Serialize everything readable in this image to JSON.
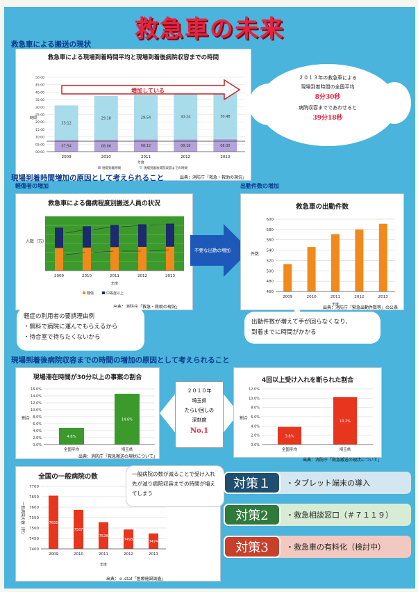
{
  "title": "救急車の未来",
  "sections": {
    "s1": "救急車による搬送の現状",
    "s2": "現場到着時間増加の原因として考えられること",
    "s3": "現場到着後病院収容までの時間の増加の原因として考えられること"
  },
  "chart1": {
    "title": "救急車による現場到着時間平均と現場到着後病院収容までの時間",
    "arrow_label": "増加している",
    "ylabel": "時間",
    "xlabel": "年度",
    "legend": [
      "現場到着時間",
      "現場到着後病院収容までの時間"
    ],
    "source": "出典：消防庁「救急・救助の現況」",
    "yticks": [
      "00:00",
      "05:00",
      "10:00",
      "15:00",
      "20:00",
      "25:00",
      "30:00",
      "35:00",
      "40:00",
      "45:00",
      "50:00"
    ]
  },
  "cloud": {
    "l1": "２０１３年の救急車による",
    "l2": "現場到着時間の全国平均",
    "v1": "8分30秒",
    "l3": "病院収容までであわせると",
    "v2": "39分18秒"
  },
  "sub_left": "軽傷者の増加",
  "sub_right": "出動件数の増加",
  "chart2": {
    "title": "救急車による傷病程度別搬送人員の状況",
    "ylabel": "人数（万）",
    "xlabel": "年度",
    "legend": [
      "軽傷",
      "中等症以上"
    ],
    "source": "出典：消防庁「救急・救助の現況」"
  },
  "arrow_label": "不要な出動の増加",
  "chart3": {
    "title": "救急車の出動件数",
    "ylabel": "件数",
    "xlabel": "年度",
    "source": "出典：消防庁「緊急出動件数等」の公表"
  },
  "callout_left": [
    "軽症の利用者の要請理由例",
    "・無料で病院に運んでもらえるから",
    "・待合室で待ちたくないから"
  ],
  "callout_right": [
    "出動件数が増えて手が回らなくなり、",
    "到着までに時間がかかる"
  ],
  "chart4": {
    "title": "現場滞在時間が30分以上の事案の割合",
    "ylabel": "割合",
    "source": "出典：消防庁「救急搬送の現状について」"
  },
  "center_box": {
    "l1": "２０１０年",
    "l2": "埼玉県",
    "l3": "たらい回しの",
    "l4": "深刻度",
    "v": "No.1"
  },
  "chart5": {
    "title": "4回以上受け入れを断られた割合",
    "ylabel": "割合",
    "source": "出典：消防庁「救急搬送の現状について」"
  },
  "chart6": {
    "title": "全国の一般病院の数",
    "ylabel": "一般病院の数（軒）",
    "xlabel": "年度",
    "source": "出典：ｅ-stat「医療施設調査」"
  },
  "callout_hosp": "一般病院の数が減ることで受け入れ先が減り病院収容までの時間が増えてしまう",
  "measures": [
    {
      "label": "対策１",
      "text": "・タブレット端末の導入",
      "color": "#1f4e6e",
      "bg": "#d4e6f0"
    },
    {
      "label": "対策2",
      "text": "・救急相談窓口（＃７１１９）",
      "color": "#2f7a3a",
      "bg": "#d8ecd5"
    },
    {
      "label": "対策3",
      "text": "・救急車の有料化（検討中）",
      "color": "#c8402a",
      "bg": "#f1c9c0"
    }
  ],
  "chart_data": [
    {
      "type": "bar",
      "title": "救急車による現場到着時間平均と現場到着後病院収容までの時間",
      "categories": [
        "2009",
        "2010",
        "2011",
        "2012",
        "2013"
      ],
      "series": [
        {
          "name": "現場到着時間",
          "labels": [
            "07:54",
            "08:06",
            "08:12",
            "08:18",
            "08:30"
          ],
          "values": [
            7.9,
            8.1,
            8.2,
            8.3,
            8.5
          ]
        },
        {
          "name": "現場到着後病院収容までの時間",
          "labels": [
            "23:12",
            "29:18",
            "29:54",
            "30:24",
            "30:48"
          ],
          "values": [
            23.2,
            29.3,
            29.9,
            30.4,
            30.8
          ]
        }
      ],
      "ylim": [
        0,
        50
      ]
    },
    {
      "type": "bar",
      "title": "救急車による傷病程度別搬送人員の状況",
      "categories": [
        "2009",
        "2010",
        "2011",
        "2012",
        "2013"
      ],
      "series": [
        {
          "name": "軽傷",
          "values": [
            250,
            255,
            260,
            262,
            264
          ]
        },
        {
          "name": "中等症以上",
          "values": [
            225,
            235,
            245,
            250,
            255
          ]
        }
      ],
      "ylim": [
        0,
        600
      ]
    },
    {
      "type": "bar",
      "title": "救急車の出動件数",
      "categories": [
        "2009",
        "2010",
        "2011",
        "2012",
        "2013"
      ],
      "values": [
        513,
        546,
        571,
        580,
        591
      ],
      "ylim": [
        460,
        600
      ],
      "yticks": [
        "460",
        "480",
        "500",
        "520",
        "540",
        "560",
        "580",
        "600"
      ]
    },
    {
      "type": "bar",
      "title": "現場滞在時間が30分以上の事案の割合",
      "categories": [
        "全国平均",
        "埼玉県"
      ],
      "values": [
        4.8,
        14.6
      ],
      "labels": [
        "4.8%",
        "14.6%"
      ],
      "ylim": [
        0,
        16
      ],
      "yticks": [
        "0.0%",
        "2.0%",
        "4.0%",
        "6.0%",
        "8.0%",
        "10.0%",
        "12.0%",
        "14.0%",
        "16.0%"
      ]
    },
    {
      "type": "bar",
      "title": "4回以上受け入れを断られた割合",
      "categories": [
        "全国平均",
        "埼玉県"
      ],
      "values": [
        3.8,
        10.2
      ],
      "labels": [
        "3.8%",
        "10.2%"
      ],
      "ylim": [
        0,
        12
      ],
      "yticks": [
        "0.0%",
        "2.0%",
        "4.0%",
        "6.0%",
        "8.0%",
        "10.0%",
        "12.0%"
      ]
    },
    {
      "type": "bar",
      "title": "全国の一般病院の数",
      "categories": [
        "2009",
        "2010",
        "2011",
        "2012",
        "2013"
      ],
      "values": [
        7655,
        7587,
        7528,
        7493,
        7474
      ],
      "labels": [
        "7655",
        "7587",
        "7528",
        "7493",
        "7474"
      ],
      "ylim": [
        7400,
        7700
      ],
      "yticks": [
        "7400",
        "7450",
        "7500",
        "7550",
        "7600",
        "7650",
        "7700"
      ]
    }
  ]
}
